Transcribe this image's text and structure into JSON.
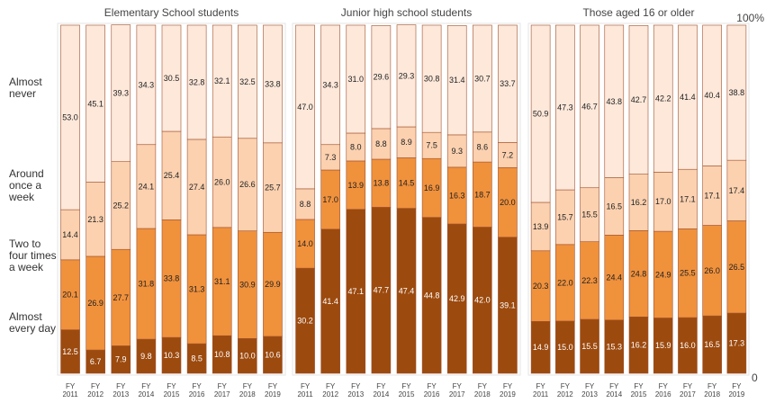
{
  "chart_data": {
    "type": "bar",
    "stacked": true,
    "orientation": "vertical",
    "categories": [
      "FY 2011",
      "FY 2012",
      "FY 2013",
      "FY 2014",
      "FY 2015",
      "FY 2016",
      "FY 2017",
      "FY 2018",
      "FY 2019"
    ],
    "y_axis": {
      "top_label": "100%",
      "bottom_label": "0",
      "ylim": [
        0,
        100
      ]
    },
    "series": [
      {
        "name": "Almost every day",
        "color": "#9c4a0e"
      },
      {
        "name": "Two to four times a week",
        "color": "#f0913c"
      },
      {
        "name": "Around once a week",
        "color": "#fbd1b0"
      },
      {
        "name": "Almost never",
        "color": "#fde8da"
      }
    ],
    "panels": [
      {
        "title": "Elementary School students",
        "values": [
          [
            12.5,
            20.1,
            14.4,
            53.0
          ],
          [
            6.7,
            26.9,
            21.3,
            45.1
          ],
          [
            7.9,
            27.7,
            25.2,
            39.3
          ],
          [
            9.8,
            31.8,
            24.1,
            34.3
          ],
          [
            10.3,
            33.8,
            25.4,
            30.5
          ],
          [
            8.5,
            31.3,
            27.4,
            32.8
          ],
          [
            10.8,
            31.1,
            26.0,
            32.1
          ],
          [
            10.0,
            30.9,
            26.6,
            32.5
          ],
          [
            10.6,
            29.9,
            25.7,
            33.8
          ]
        ]
      },
      {
        "title": "Junior high school students",
        "values": [
          [
            30.2,
            14.0,
            8.8,
            47.0
          ],
          [
            41.4,
            17.0,
            7.3,
            34.3
          ],
          [
            47.1,
            13.9,
            8.0,
            31.0
          ],
          [
            47.7,
            13.8,
            8.8,
            29.6
          ],
          [
            47.4,
            14.5,
            8.9,
            29.3
          ],
          [
            44.8,
            16.9,
            7.5,
            30.8
          ],
          [
            42.9,
            16.3,
            9.3,
            31.4
          ],
          [
            42.0,
            18.7,
            8.6,
            30.7
          ],
          [
            39.1,
            20.0,
            7.2,
            33.7
          ]
        ]
      },
      {
        "title": "Those aged 16 or older",
        "values": [
          [
            14.9,
            20.3,
            13.9,
            50.9
          ],
          [
            15.0,
            22.0,
            15.7,
            47.3
          ],
          [
            15.5,
            22.3,
            15.5,
            46.7
          ],
          [
            15.3,
            24.4,
            16.5,
            43.8
          ],
          [
            16.2,
            24.8,
            16.2,
            42.7
          ],
          [
            15.9,
            24.9,
            17.0,
            42.2
          ],
          [
            16.0,
            25.5,
            17.1,
            41.4
          ],
          [
            16.5,
            26.0,
            17.1,
            40.4
          ],
          [
            17.3,
            26.5,
            17.4,
            38.8
          ]
        ]
      }
    ],
    "category_labels": [
      {
        "lines": [
          "Almost",
          "never"
        ]
      },
      {
        "lines": [
          "Around",
          "once a",
          "week"
        ]
      },
      {
        "lines": [
          "Two to",
          "four times",
          "a week"
        ]
      },
      {
        "lines": [
          "Almost",
          "every day"
        ]
      }
    ]
  }
}
